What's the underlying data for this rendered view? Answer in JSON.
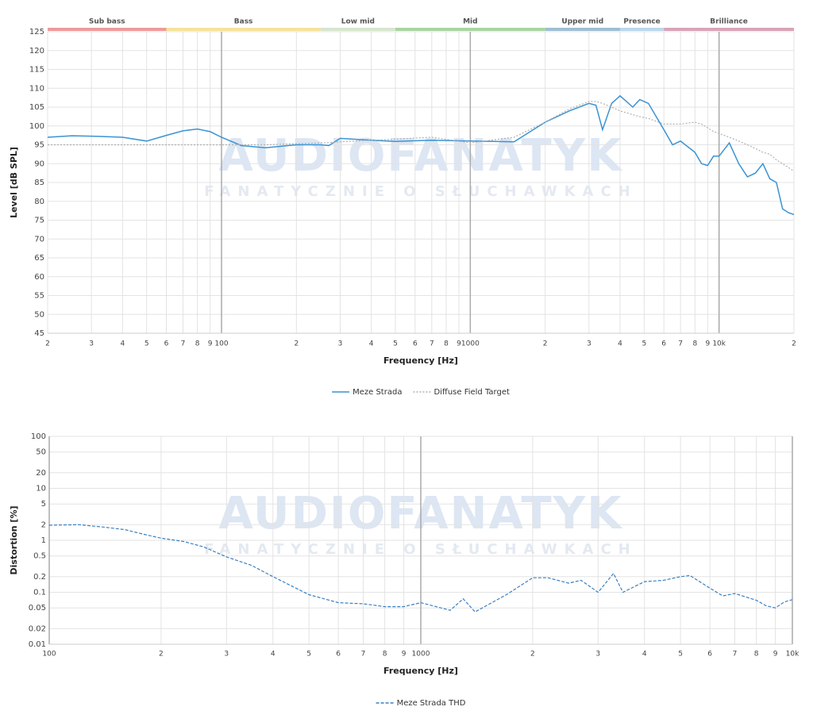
{
  "watermark": {
    "title": "AUDIOFANATYK",
    "subtitle": "FANATYCZNIE O SŁUCHAWKACH"
  },
  "chart_data": [
    {
      "type": "line",
      "xscale": "log",
      "grid": true,
      "legend": "bottom",
      "x_label": "Frequency [Hz]",
      "y_label": "Level [dB SPL]",
      "xlim": [
        20,
        20000
      ],
      "ylim": [
        45,
        125
      ],
      "xticks": [
        {
          "value": 20,
          "label": "2"
        },
        {
          "value": 30,
          "label": "3"
        },
        {
          "value": 40,
          "label": "4"
        },
        {
          "value": 50,
          "label": "5"
        },
        {
          "value": 60,
          "label": "6"
        },
        {
          "value": 70,
          "label": "7"
        },
        {
          "value": 80,
          "label": "8"
        },
        {
          "value": 90,
          "label": "9"
        },
        100,
        {
          "value": 200,
          "label": "2"
        },
        {
          "value": 300,
          "label": "3"
        },
        {
          "value": 400,
          "label": "4"
        },
        {
          "value": 500,
          "label": "5"
        },
        {
          "value": 600,
          "label": "6"
        },
        {
          "value": 700,
          "label": "7"
        },
        {
          "value": 800,
          "label": "8"
        },
        {
          "value": 900,
          "label": "9"
        },
        1000,
        {
          "value": 2000,
          "label": "2"
        },
        {
          "value": 3000,
          "label": "3"
        },
        {
          "value": 4000,
          "label": "4"
        },
        {
          "value": 5000,
          "label": "5"
        },
        {
          "value": 6000,
          "label": "6"
        },
        {
          "value": 7000,
          "label": "7"
        },
        {
          "value": 8000,
          "label": "8"
        },
        {
          "value": 9000,
          "label": "9"
        },
        {
          "value": 10000,
          "label": "10k"
        },
        {
          "value": 20000,
          "label": "2"
        }
      ],
      "yticks": [
        45,
        50,
        55,
        60,
        65,
        70,
        75,
        80,
        85,
        90,
        95,
        100,
        105,
        110,
        115,
        120,
        125
      ],
      "bands": [
        {
          "name": "Sub bass",
          "start": 20,
          "end": 60,
          "color": "#ef9a9a"
        },
        {
          "name": "Bass",
          "start": 60,
          "end": 250,
          "color": "#f5e39a"
        },
        {
          "name": "Low mid",
          "start": 250,
          "end": 500,
          "color": "#d7e6cf"
        },
        {
          "name": "Mid",
          "start": 500,
          "end": 2000,
          "color": "#a8d5a0"
        },
        {
          "name": "Upper mid",
          "start": 2000,
          "end": 4000,
          "color": "#9fbfd4"
        },
        {
          "name": "Presence",
          "start": 4000,
          "end": 6000,
          "color": "#bcd7ec"
        },
        {
          "name": "Brilliance",
          "start": 6000,
          "end": 20000,
          "color": "#d9a3b8"
        }
      ],
      "x": [
        20,
        25,
        30,
        40,
        50,
        60,
        70,
        80,
        90,
        100,
        120,
        150,
        200,
        250,
        270,
        300,
        400,
        500,
        700,
        1000,
        1500,
        2000,
        2500,
        3000,
        3200,
        3400,
        3700,
        4000,
        4500,
        4800,
        5200,
        6000,
        6500,
        7000,
        8000,
        8500,
        9000,
        9500,
        10000,
        11000,
        12000,
        13000,
        14000,
        15000,
        16000,
        17000,
        18000,
        19000,
        20000
      ],
      "series": [
        {
          "name": "Meze Strada",
          "color": "#3a93d3",
          "line_style": "solid",
          "values": [
            97,
            97.4,
            97.3,
            97,
            96,
            97.5,
            98.7,
            99.2,
            98.5,
            97,
            94.8,
            94.2,
            95,
            95,
            94.8,
            96.7,
            96.2,
            95.9,
            96.2,
            96,
            95.8,
            101,
            104,
            106,
            105.5,
            99,
            106,
            108,
            105,
            107,
            106,
            99,
            95,
            96,
            93,
            90,
            89.5,
            92,
            92,
            95.5,
            90,
            86.5,
            87.5,
            90,
            86,
            85,
            78,
            77,
            76.5
          ]
        },
        {
          "name": "Diffuse Field Target",
          "color": "#b0b0b0",
          "line_style": "dotted",
          "values": [
            95,
            95,
            95,
            95,
            95,
            95,
            95,
            95,
            95,
            95,
            95,
            95,
            95.3,
            95.5,
            95.6,
            95.8,
            96.2,
            96.5,
            97,
            95.5,
            97,
            101,
            104.5,
            106.5,
            106.5,
            106,
            105,
            104,
            103,
            102.5,
            102,
            100.5,
            100.5,
            100.5,
            101,
            100.5,
            99.5,
            98.5,
            98,
            97,
            96,
            95,
            94,
            93,
            92.5,
            91,
            90,
            89,
            88
          ]
        }
      ]
    },
    {
      "type": "line",
      "xscale": "log",
      "yscale": "log",
      "grid": true,
      "legend": "bottom",
      "x_label": "Frequency [Hz]",
      "y_label": "Distortion [%]",
      "xlim": [
        100,
        10000
      ],
      "ylim": [
        0.01,
        100
      ],
      "xticks": [
        100,
        {
          "value": 200,
          "label": "2"
        },
        {
          "value": 300,
          "label": "3"
        },
        {
          "value": 400,
          "label": "4"
        },
        {
          "value": 500,
          "label": "5"
        },
        {
          "value": 600,
          "label": "6"
        },
        {
          "value": 700,
          "label": "7"
        },
        {
          "value": 800,
          "label": "8"
        },
        {
          "value": 900,
          "label": "9"
        },
        1000,
        {
          "value": 2000,
          "label": "2"
        },
        {
          "value": 3000,
          "label": "3"
        },
        {
          "value": 4000,
          "label": "4"
        },
        {
          "value": 5000,
          "label": "5"
        },
        {
          "value": 6000,
          "label": "6"
        },
        {
          "value": 7000,
          "label": "7"
        },
        {
          "value": 8000,
          "label": "8"
        },
        {
          "value": 9000,
          "label": "9"
        },
        {
          "value": 10000,
          "label": "10k"
        }
      ],
      "yticks": [
        0.01,
        0.02,
        0.05,
        0.1,
        0.2,
        0.5,
        1,
        2,
        5,
        10,
        20,
        50,
        100
      ],
      "x": [
        100,
        120,
        140,
        160,
        180,
        200,
        230,
        260,
        300,
        350,
        400,
        500,
        600,
        700,
        800,
        900,
        1000,
        1200,
        1300,
        1400,
        1500,
        1700,
        2000,
        2200,
        2500,
        2700,
        3000,
        3300,
        3500,
        4000,
        4500,
        5000,
        5300,
        6000,
        6500,
        7000,
        8000,
        8500,
        9000,
        9500,
        10000
      ],
      "series": [
        {
          "name": "Meze Strada THD",
          "color": "#3a7fc0",
          "line_style": "dashed",
          "values": [
            1.95,
            2,
            1.8,
            1.6,
            1.3,
            1.1,
            0.95,
            0.75,
            0.48,
            0.33,
            0.2,
            0.09,
            0.063,
            0.06,
            0.053,
            0.053,
            0.063,
            0.045,
            0.075,
            0.042,
            0.055,
            0.09,
            0.19,
            0.19,
            0.15,
            0.17,
            0.1,
            0.23,
            0.1,
            0.16,
            0.17,
            0.2,
            0.21,
            0.12,
            0.085,
            0.095,
            0.07,
            0.055,
            0.05,
            0.065,
            0.072
          ]
        }
      ]
    }
  ]
}
